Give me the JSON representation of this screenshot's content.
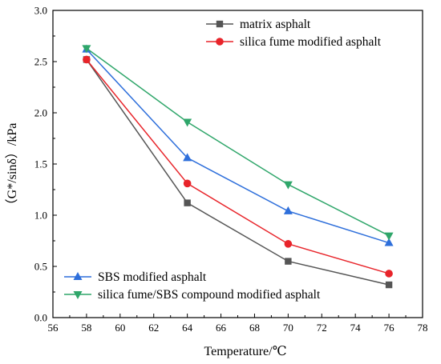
{
  "chart_data": {
    "type": "line",
    "xlabel": "Temperature/℃",
    "ylabel": "（G*/sinδ）/kPa",
    "xlim": [
      56,
      78
    ],
    "ylim": [
      0.0,
      3.0
    ],
    "xticks": [
      "56",
      "58",
      "60",
      "62",
      "64",
      "66",
      "68",
      "70",
      "72",
      "74",
      "76",
      "78"
    ],
    "yticks": [
      "0.0",
      "0.5",
      "1.0",
      "1.5",
      "2.0",
      "2.5",
      "3.0"
    ],
    "x": [
      58,
      64,
      70,
      76
    ],
    "grid": false,
    "legend_placement": "split: top-right and bottom-left",
    "series": [
      {
        "name": "matrix asphalt",
        "values": [
          2.52,
          1.12,
          0.55,
          0.32
        ],
        "color": "#555555",
        "marker": "square",
        "legend_group": "top"
      },
      {
        "name": "silica fume modified asphalt",
        "values": [
          2.52,
          1.31,
          0.72,
          0.43
        ],
        "color": "#e8242a",
        "marker": "circle",
        "legend_group": "top"
      },
      {
        "name": "SBS modified asphalt",
        "values": [
          2.62,
          1.56,
          1.04,
          0.73
        ],
        "color": "#2e6fdb",
        "marker": "triangle-up",
        "legend_group": "bottom"
      },
      {
        "name": "silica fume/SBS compound modified asphalt",
        "values": [
          2.63,
          1.91,
          1.3,
          0.8
        ],
        "color": "#2fa66a",
        "marker": "triangle-down",
        "legend_group": "bottom"
      }
    ]
  }
}
